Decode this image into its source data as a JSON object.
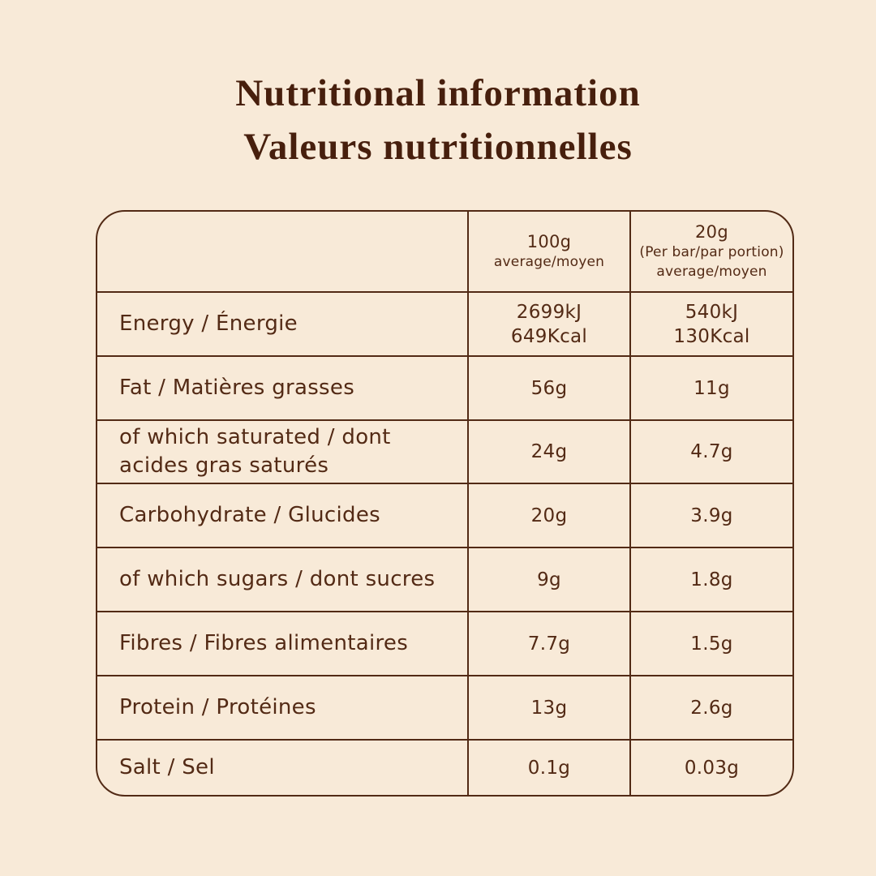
{
  "title": {
    "line1": "Nutritional information",
    "line2": "Valeurs nutritionnelles"
  },
  "table": {
    "header": {
      "col100": [
        "100g",
        "average/moyen"
      ],
      "col20": [
        "20g",
        "(Per bar/par portion)",
        "average/moyen"
      ]
    },
    "rows": [
      {
        "label": "Energy / Énergie",
        "v100": [
          "2699kJ",
          "649Kcal"
        ],
        "v20": [
          "540kJ",
          "130Kcal"
        ]
      },
      {
        "label": "Fat / Matières grasses",
        "v100": [
          "56g"
        ],
        "v20": [
          "11g"
        ]
      },
      {
        "label": "of which saturated / dont acides gras saturés",
        "v100": [
          "24g"
        ],
        "v20": [
          "4.7g"
        ]
      },
      {
        "label": "Carbohydrate / Glucides",
        "v100": [
          "20g"
        ],
        "v20": [
          "3.9g"
        ]
      },
      {
        "label": "of which sugars / dont sucres",
        "v100": [
          "9g"
        ],
        "v20": [
          "1.8g"
        ]
      },
      {
        "label": "Fibres / Fibres alimentaires",
        "v100": [
          "7.7g"
        ],
        "v20": [
          "1.5g"
        ]
      },
      {
        "label": "Protein / Protéines",
        "v100": [
          "13g"
        ],
        "v20": [
          "2.6g"
        ]
      },
      {
        "label": "Salt / Sel",
        "v100": [
          "0.1g"
        ],
        "v20": [
          "0.03g"
        ]
      }
    ]
  },
  "colors": {
    "background": "#f8ead8",
    "title_ink": "#471f0d",
    "table_ink": "#532a15",
    "border": "#522a15"
  }
}
